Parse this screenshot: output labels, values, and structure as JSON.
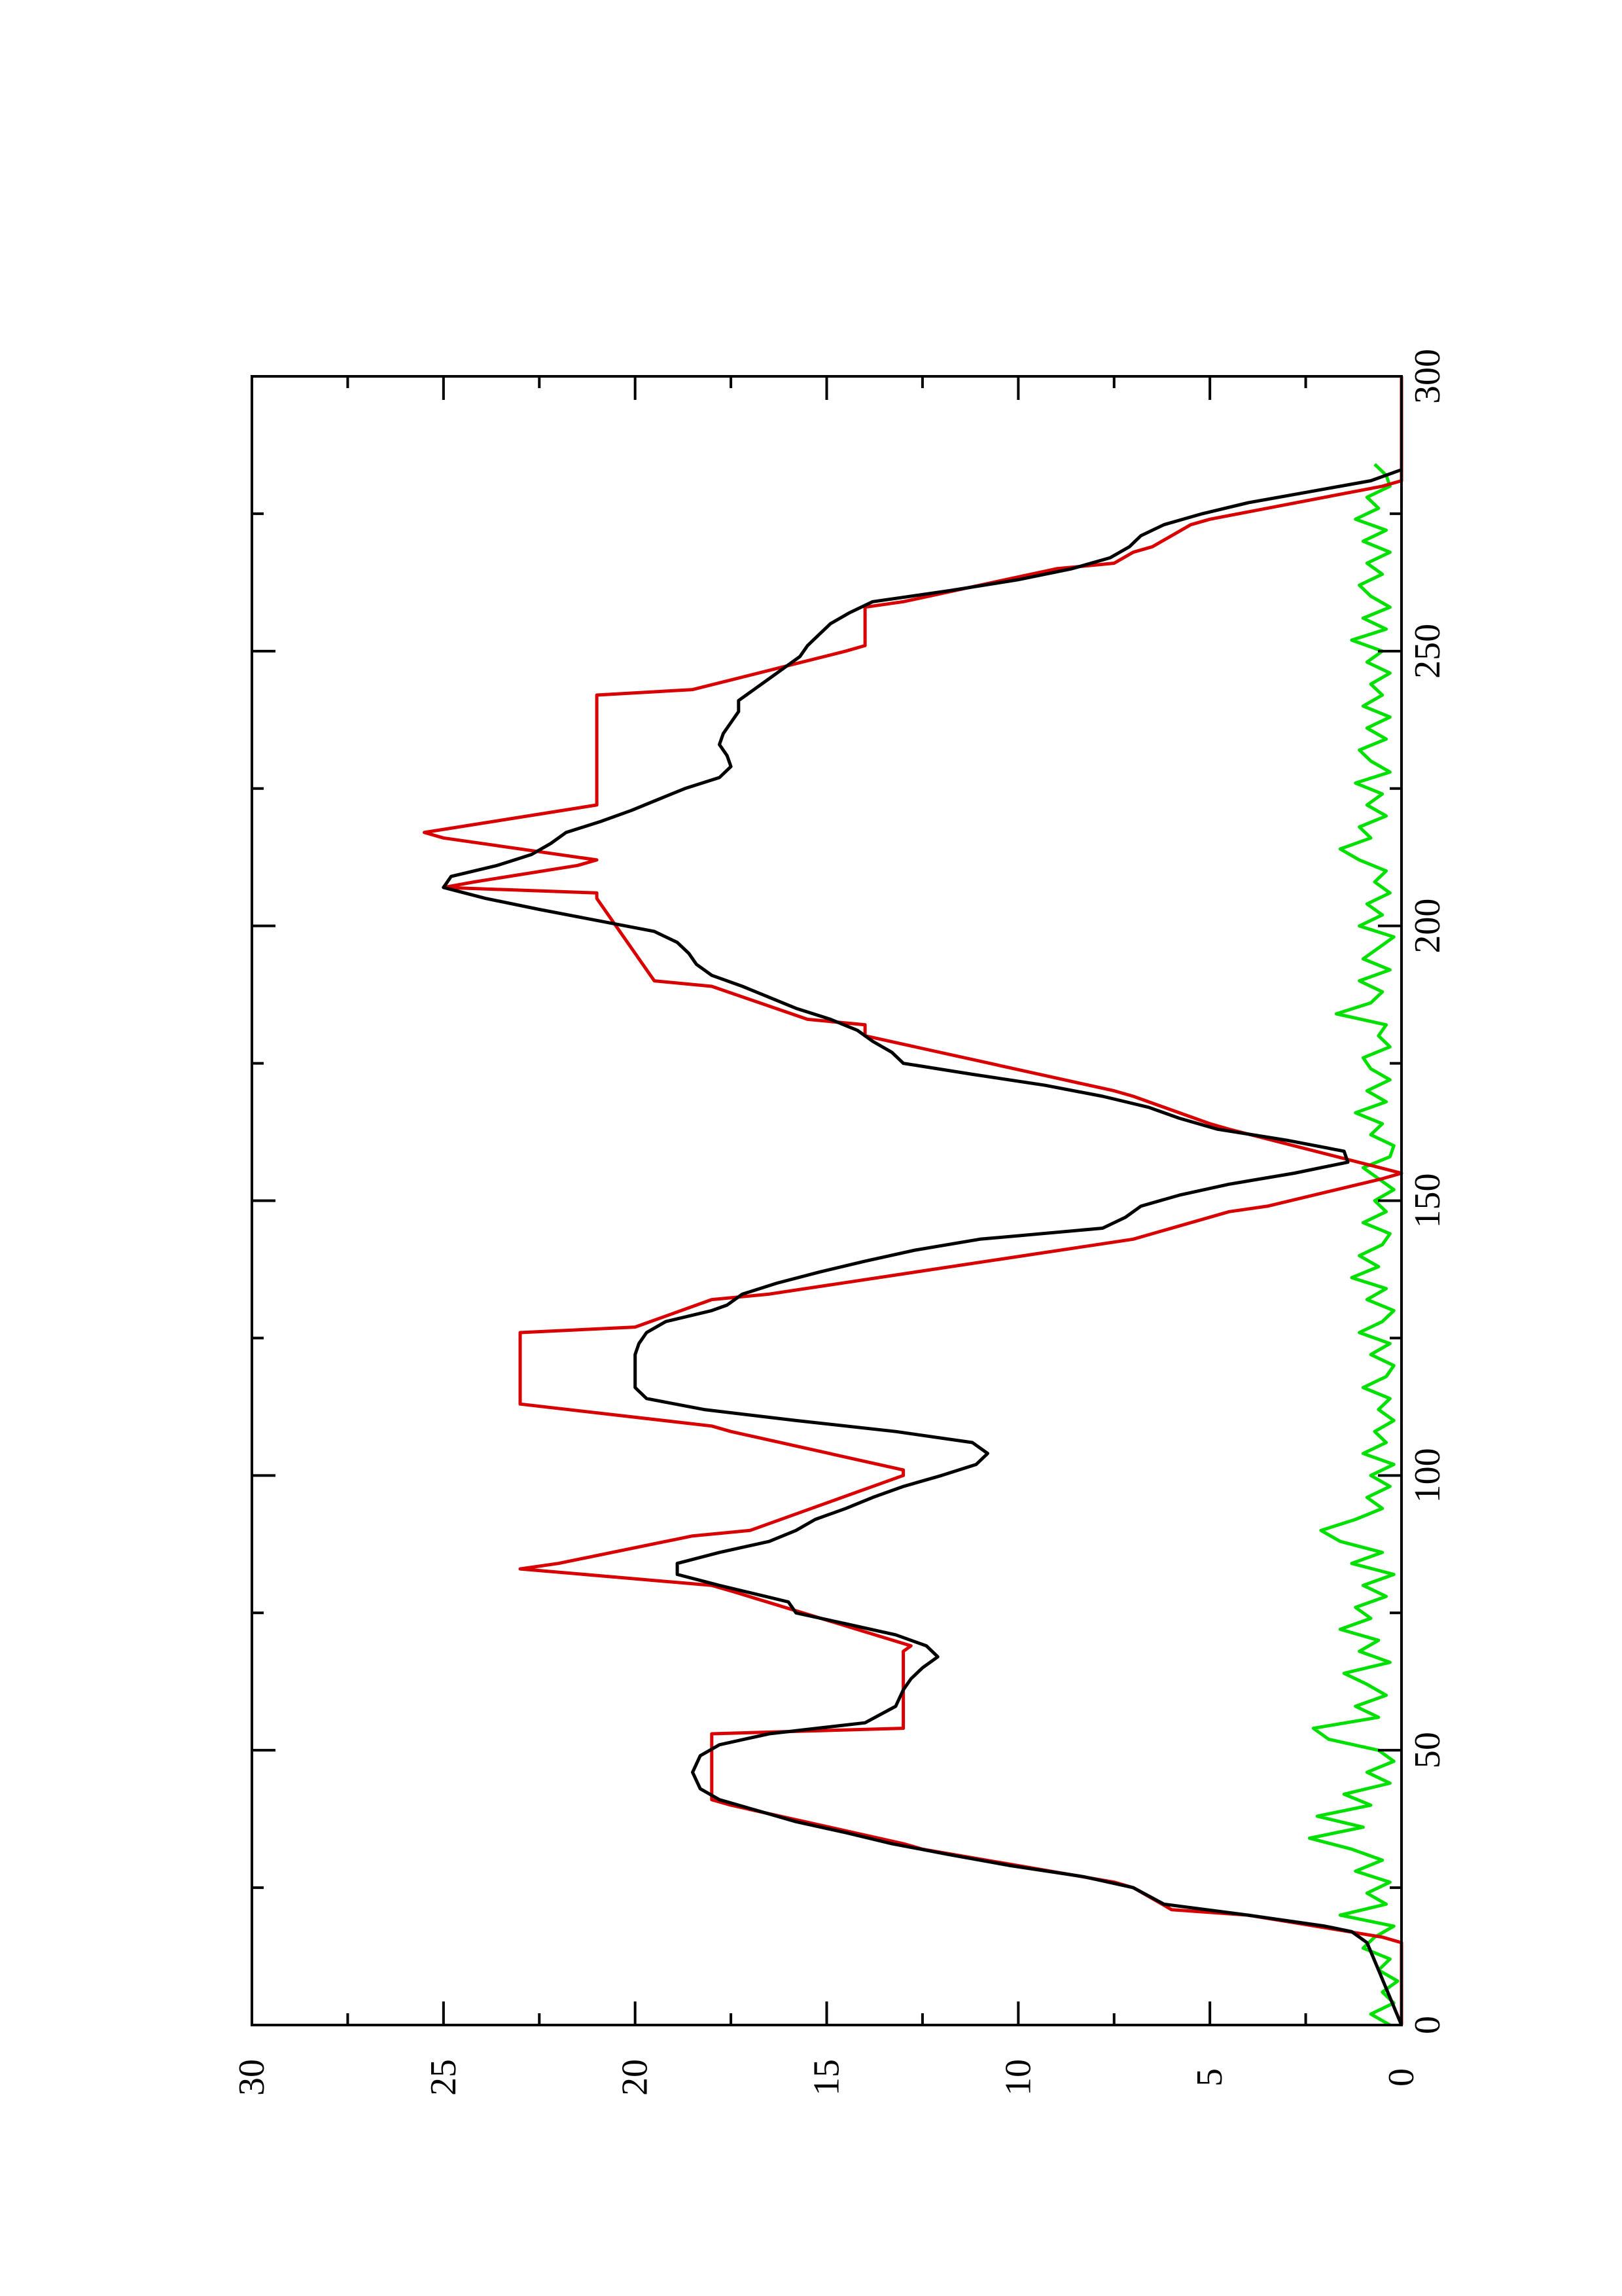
{
  "chart_data": {
    "type": "line",
    "title": "",
    "xlabel": "",
    "ylabel": "",
    "orientation": "rotated-90-ccw",
    "xlim": [
      0,
      300
    ],
    "ylim": [
      0,
      30
    ],
    "x_major_ticks": [
      0,
      50,
      100,
      150,
      200,
      250,
      300
    ],
    "x_minor_ticks": [
      25,
      75,
      125,
      175,
      225,
      275
    ],
    "y_major_ticks": [
      0,
      5,
      10,
      15,
      20,
      25,
      30
    ],
    "y_minor_ticks": [
      2.5,
      7.5,
      12.5,
      17.5,
      22.5,
      27.5
    ],
    "x_tick_labels": [
      "0",
      "50",
      "100",
      "150",
      "200",
      "250",
      "300"
    ],
    "y_tick_labels": [
      "0",
      "5",
      "10",
      "15",
      "20",
      "25",
      "30"
    ],
    "grid": false,
    "legend": "none",
    "series": [
      {
        "color": "#000000",
        "style": "line",
        "x": [
          0,
          5,
          10,
          15,
          17,
          18,
          20,
          22,
          25,
          27,
          29,
          31,
          33,
          35,
          37,
          39,
          41,
          43,
          46,
          49,
          51,
          53,
          55,
          58,
          61,
          63,
          65,
          67,
          69,
          71,
          73,
          75,
          77,
          78,
          80,
          82,
          84,
          86,
          88,
          90,
          92,
          94,
          96,
          98,
          100,
          102,
          104,
          106,
          108,
          110,
          112,
          114,
          116,
          118,
          120,
          122,
          124,
          126,
          128,
          130,
          131,
          133,
          135,
          137,
          139,
          141,
          143,
          145,
          147,
          149,
          151,
          153,
          155,
          157,
          159,
          161,
          163,
          165,
          167,
          169,
          171,
          173,
          175,
          177,
          179,
          181,
          183,
          185,
          187,
          189,
          191,
          193,
          195,
          197,
          199,
          201,
          203,
          205,
          207,
          209,
          211,
          213,
          215,
          217,
          219,
          221,
          223,
          225,
          227,
          229,
          231,
          233,
          235,
          237,
          239,
          241,
          243,
          245,
          247,
          249,
          251,
          253,
          255,
          257,
          259,
          261,
          263,
          265,
          267,
          269,
          271,
          273,
          275,
          277,
          279,
          281,
          283
        ],
        "y": [
          0,
          0.3,
          0.6,
          0.9,
          1.3,
          2.0,
          4.0,
          6.2,
          7.0,
          8.3,
          10.2,
          11.8,
          13.3,
          14.5,
          15.8,
          16.8,
          17.8,
          18.3,
          18.5,
          18.3,
          17.8,
          16.5,
          14.0,
          13.2,
          13.0,
          12.8,
          12.5,
          12.1,
          12.4,
          13.2,
          14.5,
          15.8,
          16.0,
          16.6,
          17.8,
          18.9,
          18.9,
          17.8,
          16.5,
          15.8,
          15.3,
          14.5,
          13.8,
          13.0,
          12.0,
          11.1,
          10.8,
          11.2,
          13.2,
          15.8,
          18.2,
          19.7,
          20.0,
          20.0,
          20.0,
          20.0,
          19.9,
          19.7,
          19.2,
          18.0,
          17.6,
          17.2,
          16.3,
          15.2,
          14.0,
          12.7,
          11.0,
          7.8,
          7.2,
          6.8,
          5.8,
          4.5,
          2.8,
          1.4,
          1.5,
          3.0,
          4.8,
          5.8,
          6.6,
          7.8,
          9.3,
          11.2,
          13.0,
          13.3,
          13.8,
          14.2,
          14.9,
          15.8,
          16.5,
          17.2,
          18.0,
          18.4,
          18.6,
          18.9,
          19.5,
          21.0,
          22.5,
          23.9,
          25.0,
          24.8,
          23.6,
          22.7,
          22.2,
          21.8,
          20.9,
          20.1,
          19.4,
          18.7,
          17.8,
          17.5,
          17.6,
          17.8,
          17.7,
          17.5,
          17.3,
          17.3,
          16.9,
          16.5,
          16.1,
          15.7,
          15.5,
          15.2,
          14.9,
          14.4,
          13.8,
          11.8,
          10.0,
          8.6,
          7.6,
          7.1,
          6.8,
          6.2,
          5.2,
          4.0,
          2.4,
          0.8,
          0
        ]
      },
      {
        "color": "#d80000",
        "style": "stepped-line",
        "x": [
          0,
          15,
          16,
          20,
          21,
          25,
          26,
          32,
          33,
          40,
          41,
          53,
          54,
          68,
          69,
          79,
          80,
          83,
          84,
          89,
          90,
          100,
          101,
          108,
          109,
          113,
          114,
          126,
          127,
          132,
          133,
          143,
          144,
          148,
          149,
          154,
          155,
          163,
          164,
          169,
          170,
          180,
          181,
          182,
          183,
          189,
          190,
          205,
          206,
          207,
          208,
          211,
          212,
          216,
          217,
          222,
          223,
          242,
          243,
          250,
          251,
          258,
          259,
          265,
          266,
          268,
          269,
          273,
          274,
          280,
          281,
          300
        ],
        "y": [
          0,
          0,
          0.5,
          4.0,
          6.0,
          7.0,
          7.5,
          12.5,
          13.0,
          17.5,
          18.0,
          18.0,
          13.0,
          13.0,
          12.8,
          17.5,
          18.0,
          23.0,
          22.0,
          18.5,
          17.0,
          13.0,
          13.0,
          17.5,
          18.0,
          23.0,
          23.0,
          23.0,
          20.0,
          18.0,
          16.5,
          7.0,
          6.5,
          4.5,
          3.5,
          0.5,
          0,
          4.5,
          5.0,
          7.0,
          7.5,
          14.0,
          14.0,
          14.0,
          15.5,
          18.0,
          19.5,
          21.0,
          21.0,
          25.0,
          24.2,
          21.5,
          21.0,
          25.0,
          25.5,
          21.0,
          21.0,
          21.0,
          18.5,
          14.5,
          14.0,
          14.0,
          13.0,
          9.0,
          7.5,
          7.0,
          6.5,
          5.5,
          5.0,
          0.5,
          0,
          0
        ]
      },
      {
        "color": "#00e000",
        "style": "line",
        "x": [
          0,
          2,
          4,
          6,
          8,
          10,
          12,
          14,
          16,
          18,
          20,
          22,
          24,
          26,
          28,
          30,
          32,
          34,
          36,
          38,
          40,
          42,
          44,
          46,
          48,
          50,
          52,
          54,
          56,
          58,
          60,
          62,
          64,
          66,
          68,
          70,
          72,
          74,
          76,
          78,
          80,
          82,
          84,
          86,
          88,
          90,
          92,
          94,
          96,
          98,
          100,
          102,
          104,
          106,
          108,
          110,
          112,
          114,
          116,
          118,
          120,
          122,
          124,
          126,
          128,
          130,
          132,
          134,
          136,
          138,
          140,
          142,
          144,
          146,
          148,
          150,
          152,
          154,
          156,
          158,
          160,
          162,
          164,
          166,
          168,
          170,
          172,
          174,
          176,
          178,
          180,
          182,
          184,
          186,
          188,
          190,
          192,
          194,
          196,
          198,
          200,
          202,
          204,
          206,
          208,
          210,
          212,
          214,
          216,
          218,
          220,
          222,
          224,
          226,
          228,
          230,
          232,
          234,
          236,
          238,
          240,
          242,
          244,
          246,
          248,
          250,
          252,
          254,
          256,
          258,
          260,
          262,
          264,
          266,
          268,
          270,
          272,
          274,
          276,
          278,
          280,
          282,
          284
        ],
        "y": [
          0.3,
          0.8,
          0.2,
          0.5,
          0.1,
          0.6,
          0.3,
          1.0,
          0.7,
          0.2,
          1.6,
          0.4,
          0.9,
          0.3,
          1.2,
          0.5,
          1.3,
          2.4,
          1.0,
          2.2,
          0.8,
          1.5,
          0.3,
          0.9,
          0.2,
          0.6,
          1.9,
          2.3,
          0.6,
          1.2,
          0.4,
          0.9,
          1.5,
          0.3,
          1.1,
          0.6,
          1.6,
          0.8,
          1.2,
          0.4,
          1.0,
          0.2,
          1.3,
          0.5,
          1.6,
          2.1,
          1.2,
          0.5,
          0.9,
          0.3,
          0.8,
          0.2,
          1.0,
          0.4,
          0.7,
          0.2,
          0.6,
          0.3,
          1.0,
          0.4,
          0.2,
          0.8,
          0.3,
          1.1,
          0.5,
          0.2,
          0.9,
          0.4,
          1.3,
          0.6,
          1.1,
          0.5,
          0.3,
          1.0,
          0.4,
          0.7,
          0.2,
          0.6,
          1.0,
          0.3,
          0.2,
          0.8,
          0.5,
          1.2,
          0.4,
          0.9,
          0.3,
          0.8,
          1.0,
          0.3,
          0.6,
          0.4,
          1.7,
          0.8,
          0.5,
          1.1,
          0.3,
          1.0,
          0.6,
          0.2,
          1.1,
          0.5,
          0.9,
          0.3,
          0.7,
          0.4,
          1.1,
          1.6,
          0.8,
          1.1,
          0.4,
          0.9,
          0.5,
          1.2,
          0.3,
          0.8,
          1.1,
          0.4,
          0.9,
          0.3,
          1.0,
          0.5,
          0.8,
          0.3,
          0.9,
          0.5,
          1.3,
          0.4,
          1.0,
          0.3,
          0.8,
          1.1,
          0.5,
          0.9,
          0.3,
          1.0,
          0.4,
          1.2,
          0.6,
          0.9,
          0.3,
          0.4,
          0.7
        ]
      }
    ]
  }
}
